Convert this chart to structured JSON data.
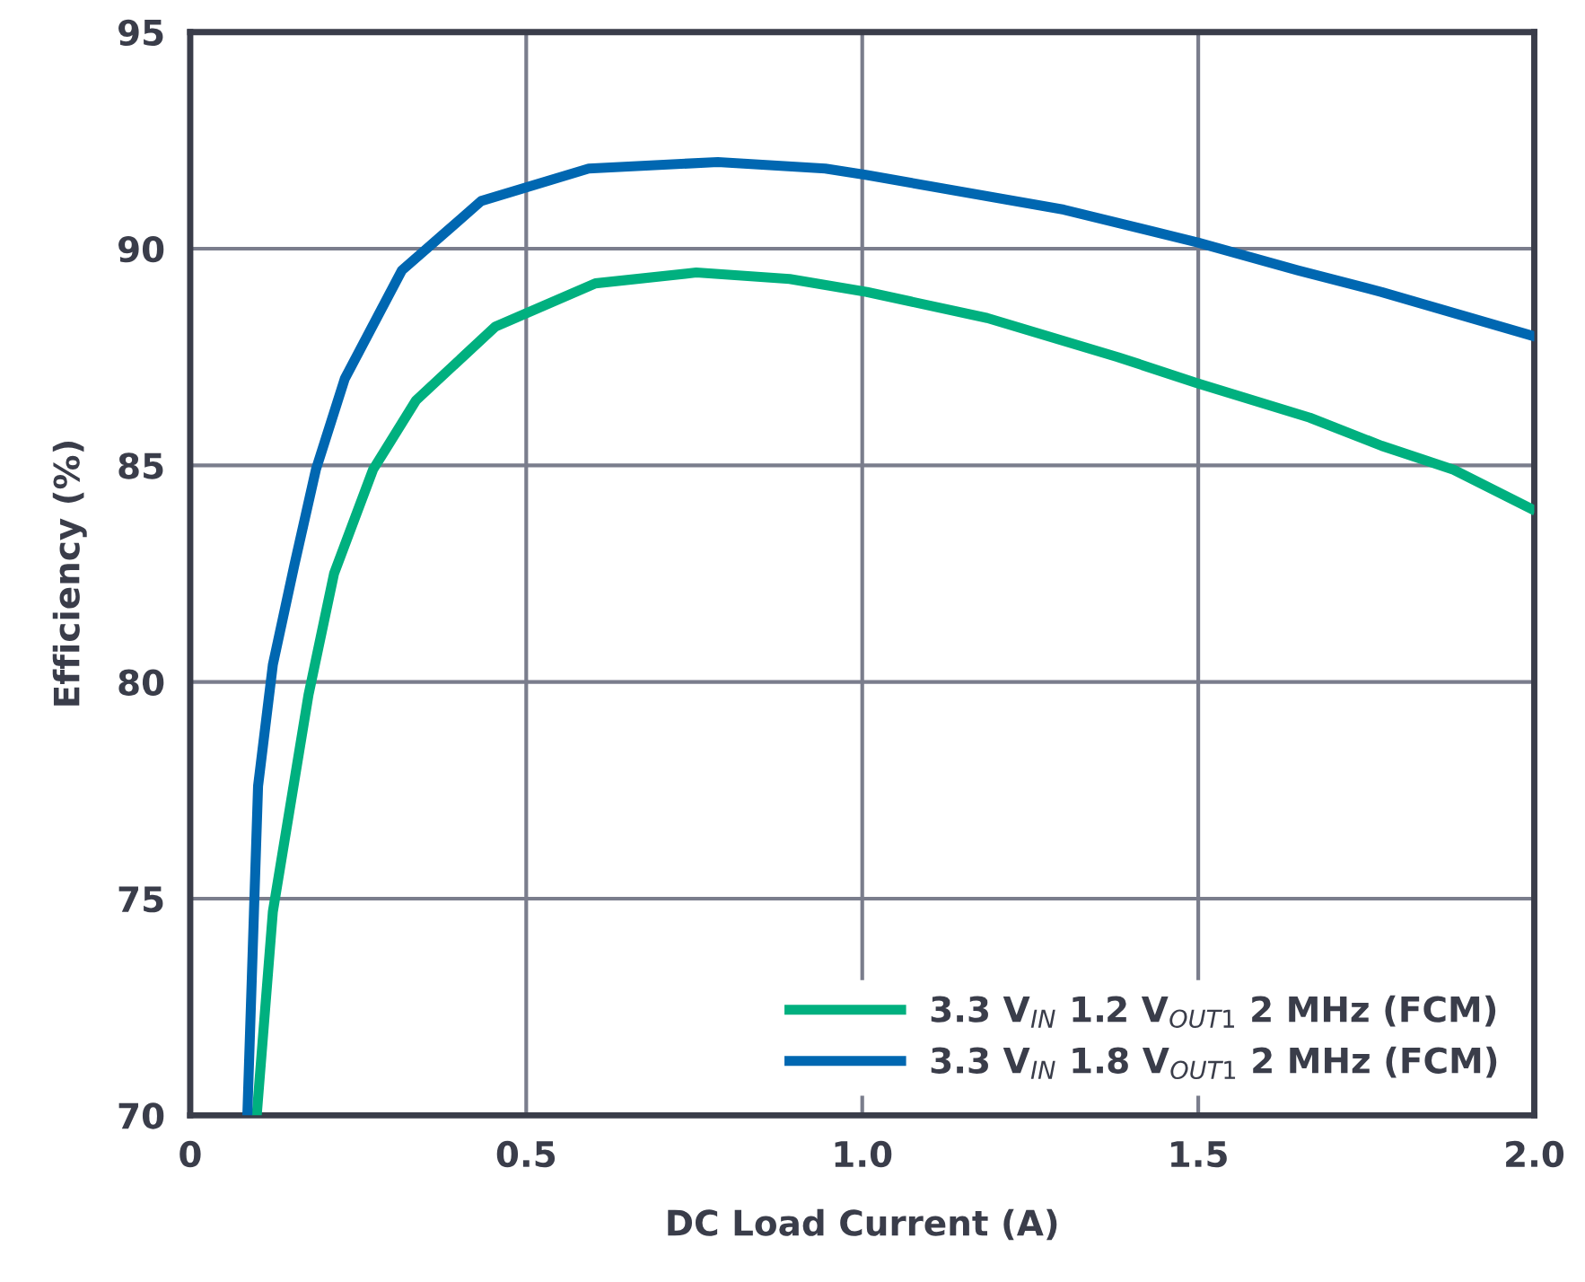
{
  "chart_data": {
    "type": "line",
    "xlabel": "DC Load Current (A)",
    "ylabel": "Efficiency (%)",
    "xlim": [
      0,
      2
    ],
    "ylim": [
      70,
      95
    ],
    "xticks": [
      0,
      0.5,
      {
        "value": 1,
        "label": "1.0"
      },
      1.5,
      {
        "value": 2,
        "label": "2.0"
      }
    ],
    "yticks": [
      70,
      75,
      80,
      85,
      90,
      95
    ],
    "grid": true,
    "legend": "bottom right",
    "marker": "none",
    "line_style": "solid",
    "series": [
      {
        "name": "3.3 V$_{IN}$ 1.2 V$_{OUT1}$ 2 MHz (FCM)",
        "color": "#00b07f",
        "x": [
          0.099,
          0.123,
          0.176,
          0.214,
          0.272,
          0.336,
          0.454,
          0.603,
          0.753,
          0.892,
          1.007,
          1.186,
          1.38,
          1.498,
          1.666,
          1.773,
          1.88,
          1.995
        ],
        "values": [
          70,
          74.7,
          79.7,
          82.5,
          84.9,
          86.5,
          88.2,
          89.2,
          89.45,
          89.3,
          89.0,
          88.4,
          87.5,
          86.9,
          86.1,
          85.45,
          84.9,
          84.0
        ]
      },
      {
        "name": "3.3 V$_{IN}$ 1.8 V$_{OUT1}$ 2 MHz (FCM)",
        "color": "#0067b1",
        "x": [
          0.085,
          0.101,
          0.123,
          0.155,
          0.187,
          0.23,
          0.315,
          0.433,
          0.593,
          0.785,
          0.945,
          1.007,
          1.3,
          1.498,
          1.648,
          1.773,
          1.995
        ],
        "values": [
          70,
          77.6,
          80.4,
          82.7,
          84.9,
          87.0,
          89.5,
          91.1,
          91.85,
          92.0,
          91.85,
          91.7,
          90.9,
          90.15,
          89.5,
          89.0,
          88.0
        ]
      }
    ]
  }
}
